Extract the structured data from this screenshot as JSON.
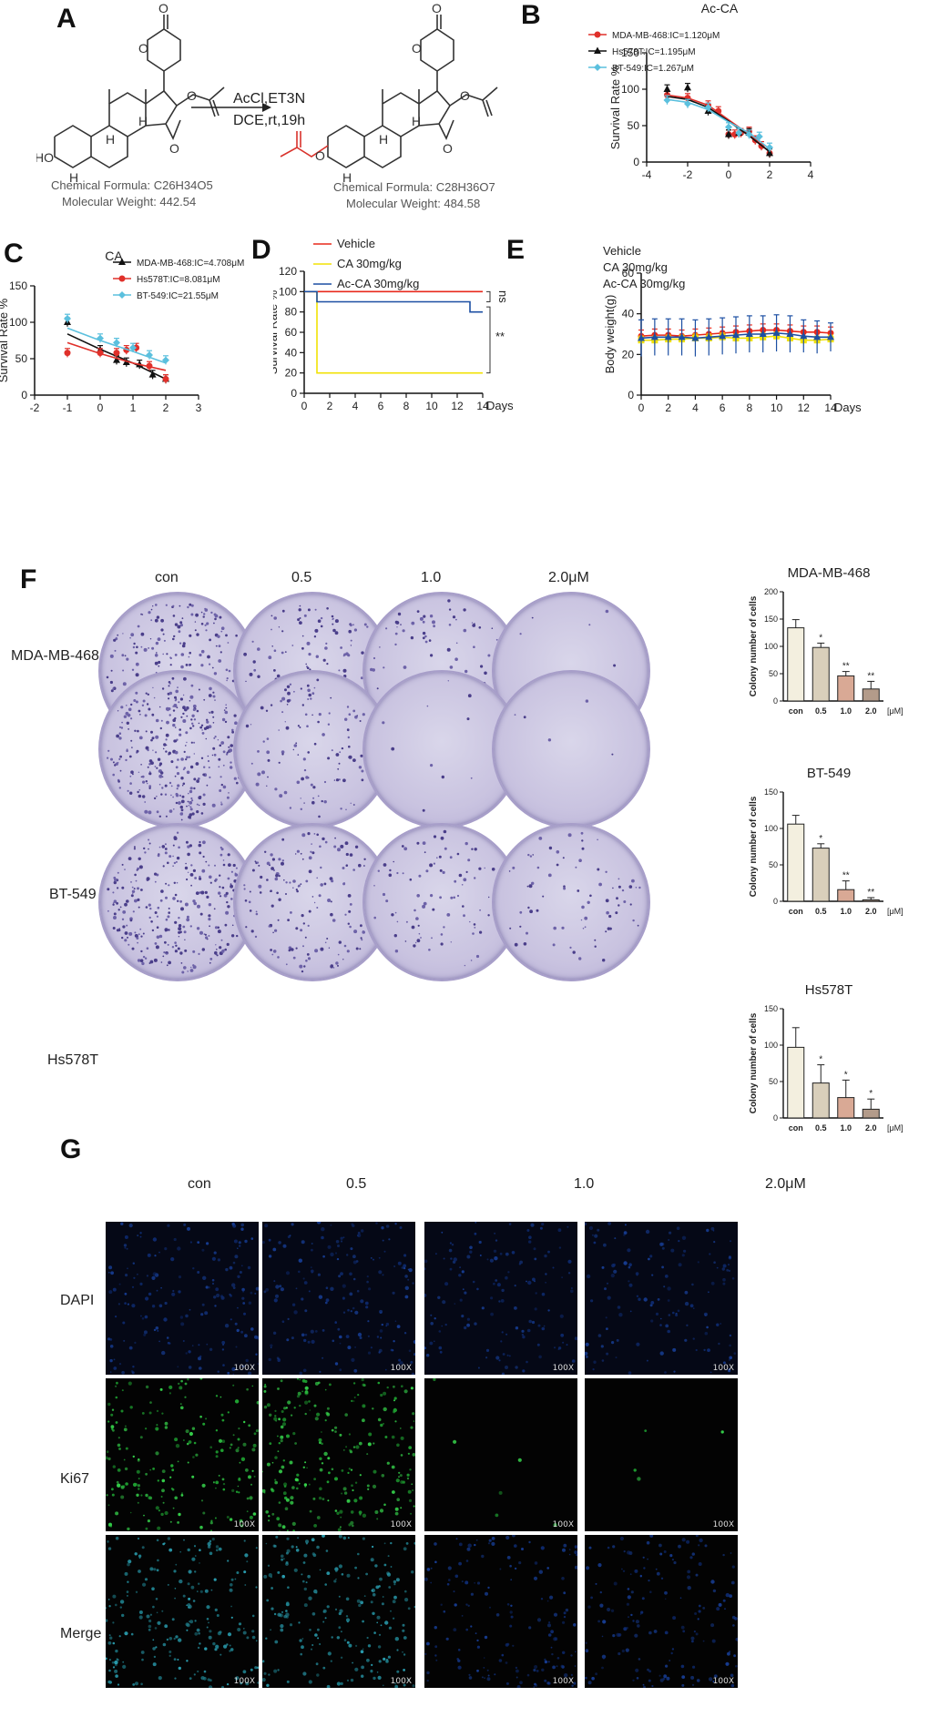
{
  "panels": {
    "A": "A",
    "B": "B",
    "C": "C",
    "D": "D",
    "E": "E",
    "F": "F",
    "G": "G"
  },
  "panelA": {
    "reagents": "AcCl,ET3N",
    "conditions": "DCE,rt,19h",
    "reactant": {
      "formula": "Chemical Formula: C26H34O5",
      "weight": "Molecular Weight: 442.54"
    },
    "product": {
      "formula": "Chemical Formula: C28H36O7",
      "weight": "Molecular Weight: 484.58"
    },
    "atom_labels": {
      "o": "O",
      "h": "H",
      "ho": "HO"
    }
  },
  "chart_data": [
    {
      "id": "B",
      "type": "line",
      "title": "Ac-CA",
      "xlabel": "",
      "ylabel": "Survival Rate %",
      "xlim": [
        -4,
        4
      ],
      "ylim": [
        0,
        150
      ],
      "xticks": [
        "-4",
        "-2",
        "0",
        "2",
        "4"
      ],
      "yticks": [
        "0",
        "50",
        "100",
        "150"
      ],
      "series": [
        {
          "name": "MDA-MB-468:IC=1.120μM",
          "color": "#e0302a",
          "marker": "circle",
          "x": [
            -3,
            -2,
            -1,
            -0.5,
            0,
            0.3,
            0.6,
            1,
            1.3,
            1.6,
            2
          ],
          "y": [
            92,
            88,
            78,
            70,
            38,
            38,
            40,
            42,
            30,
            22,
            12
          ],
          "curve": [
            [
              -3,
              92
            ],
            [
              -2,
              88
            ],
            [
              -1,
              78
            ],
            [
              0,
              58
            ],
            [
              1,
              38
            ],
            [
              2,
              14
            ]
          ]
        },
        {
          "name": "Hs578T:IC=1.195μM",
          "color": "#111111",
          "marker": "triangle",
          "x": [
            -3,
            -2,
            -1,
            0,
            0.5,
            1,
            2
          ],
          "y": [
            100,
            102,
            70,
            38,
            40,
            40,
            12
          ],
          "curve": [
            [
              -3,
              90
            ],
            [
              -2,
              86
            ],
            [
              -1,
              75
            ],
            [
              0,
              56
            ],
            [
              1,
              36
            ],
            [
              2,
              14
            ]
          ]
        },
        {
          "name": "BT-549:IC=1.267μM",
          "color": "#5bc0de",
          "marker": "diamond",
          "x": [
            -3,
            -2,
            -1,
            0,
            0.5,
            1,
            1.5,
            2
          ],
          "y": [
            85,
            80,
            75,
            48,
            40,
            38,
            35,
            20
          ],
          "curve": [
            [
              -3,
              86
            ],
            [
              -2,
              82
            ],
            [
              -1,
              72
            ],
            [
              0,
              55
            ],
            [
              1,
              40
            ],
            [
              2,
              18
            ]
          ]
        }
      ]
    },
    {
      "id": "C",
      "type": "line",
      "title": "CA",
      "xlabel": "",
      "ylabel": "Survival Rate %",
      "xlim": [
        -2,
        3
      ],
      "ylim": [
        0,
        150
      ],
      "xticks": [
        "-2",
        "-1",
        "0",
        "1",
        "2",
        "3"
      ],
      "yticks": [
        "0",
        "50",
        "100",
        "150"
      ],
      "series": [
        {
          "name": "MDA-MB-468:IC=4.708μM",
          "color": "#111111",
          "marker": "triangle",
          "x": [
            -1,
            0,
            0.5,
            0.8,
            1.2,
            1.6,
            2
          ],
          "y": [
            100,
            62,
            48,
            45,
            42,
            28,
            22
          ],
          "curve": [
            [
              -1,
              84
            ],
            [
              0,
              63
            ],
            [
              1,
              44
            ],
            [
              2,
              22
            ]
          ]
        },
        {
          "name": "Hs578T:IC=8.081μM",
          "color": "#e0302a",
          "marker": "circle",
          "x": [
            -1,
            0,
            0.5,
            0.8,
            1.1,
            1.5,
            2
          ],
          "y": [
            58,
            58,
            58,
            62,
            65,
            40,
            22
          ],
          "curve": [
            [
              -1,
              72
            ],
            [
              0,
              57
            ],
            [
              1,
              44
            ],
            [
              2,
              34
            ]
          ]
        },
        {
          "name": "BT-549:IC=21.55μM",
          "color": "#5bc0de",
          "marker": "diamond",
          "x": [
            -1,
            0,
            0.5,
            1,
            1.5,
            2
          ],
          "y": [
            105,
            78,
            72,
            65,
            55,
            48
          ],
          "curve": [
            [
              -1,
              92
            ],
            [
              0,
              75
            ],
            [
              1,
              60
            ],
            [
              2,
              44
            ]
          ]
        }
      ]
    },
    {
      "id": "D",
      "type": "line",
      "title": "",
      "xlabel": "Days",
      "ylabel": "Survival Rate %",
      "xlim": [
        0,
        14
      ],
      "ylim": [
        0,
        120
      ],
      "xticks": [
        "0",
        "2",
        "4",
        "6",
        "8",
        "10",
        "12",
        "14"
      ],
      "yticks": [
        "0",
        "20",
        "40",
        "60",
        "80",
        "100",
        "120"
      ],
      "series": [
        {
          "name": "Vehicle",
          "color": "#e8291c",
          "steps": [
            [
              0,
              100
            ],
            [
              14,
              100
            ]
          ]
        },
        {
          "name": "CA 30mg/kg",
          "color": "#f2e205",
          "steps": [
            [
              0,
              100
            ],
            [
              1,
              100
            ],
            [
              1,
              20
            ],
            [
              14,
              20
            ]
          ]
        },
        {
          "name": "Ac-CA 30mg/kg",
          "color": "#1c4fa3",
          "steps": [
            [
              0,
              100
            ],
            [
              1,
              100
            ],
            [
              1,
              90
            ],
            [
              13,
              90
            ],
            [
              13,
              80
            ],
            [
              14,
              80
            ]
          ]
        }
      ],
      "annotations": [
        "ns",
        "**"
      ]
    },
    {
      "id": "E",
      "type": "line",
      "title": "",
      "xlabel": "Days",
      "ylabel": "Body weight(g)",
      "xlim": [
        0,
        14
      ],
      "ylim": [
        0,
        60
      ],
      "xticks": [
        "0",
        "2",
        "4",
        "6",
        "8",
        "10",
        "12",
        "14"
      ],
      "yticks": [
        "0",
        "20",
        "40",
        "60"
      ],
      "series": [
        {
          "name": "Vehicle",
          "color": "#e8291c",
          "marker": "circle",
          "x": [
            0,
            1,
            2,
            3,
            4,
            5,
            6,
            7,
            8,
            9,
            10,
            11,
            12,
            13,
            14
          ],
          "y": [
            29,
            29.5,
            29.5,
            29,
            29.5,
            30,
            30.5,
            31,
            31.5,
            32,
            32,
            31.5,
            31,
            31,
            30.5
          ],
          "err": [
            3,
            3,
            3,
            3,
            3,
            3,
            3,
            3,
            3,
            3,
            3,
            3,
            3,
            3,
            3
          ]
        },
        {
          "name": "CA 30mg/kg",
          "color": "#f2e205",
          "marker": "square",
          "x": [
            0,
            1,
            2,
            3,
            4,
            5,
            6,
            7,
            8,
            9,
            10,
            11,
            12,
            13,
            14
          ],
          "y": [
            27,
            27,
            27.5,
            27.5,
            28,
            28,
            28.5,
            28,
            28,
            28.5,
            29,
            28,
            27,
            27,
            27.5
          ],
          "err": [
            2,
            2,
            2,
            2,
            2,
            2,
            2,
            2,
            2,
            2,
            2,
            2,
            2,
            2,
            2
          ]
        },
        {
          "name": "Ac-CA 30mg/kg",
          "color": "#1c4fa3",
          "marker": "triangle",
          "x": [
            0,
            1,
            2,
            3,
            4,
            5,
            6,
            7,
            8,
            9,
            10,
            11,
            12,
            13,
            14
          ],
          "y": [
            28,
            28.5,
            28.5,
            28.5,
            28,
            28.5,
            29,
            29.5,
            30,
            30,
            30.5,
            30,
            29,
            28.5,
            28.5
          ],
          "err": [
            9,
            9,
            9,
            9,
            9,
            9,
            9,
            9,
            9,
            9,
            9,
            9,
            8,
            8,
            7
          ]
        }
      ]
    },
    {
      "id": "F1",
      "type": "bar",
      "title": "MDA-MB-468",
      "ylabel": "Colony number of cells",
      "unit": "[μM]",
      "categories": [
        "con",
        "0.5",
        "1.0",
        "2.0"
      ],
      "values": [
        134,
        98,
        46,
        22
      ],
      "err": [
        15,
        8,
        8,
        14
      ],
      "sig": [
        "",
        "*",
        "**",
        "**"
      ],
      "ylim": [
        0,
        200
      ],
      "yticks": [
        "0",
        "50",
        "100",
        "150",
        "200"
      ],
      "colors": [
        "#f3efdf",
        "#d9cfbb",
        "#d9a995",
        "#b39b8a"
      ]
    },
    {
      "id": "F2",
      "type": "bar",
      "title": "BT-549",
      "ylabel": "Colony number of cells",
      "unit": "[μM]",
      "categories": [
        "con",
        "0.5",
        "1.0",
        "2.0"
      ],
      "values": [
        106,
        73,
        16,
        2
      ],
      "err": [
        12,
        6,
        12,
        3
      ],
      "sig": [
        "",
        "*",
        "**",
        "**"
      ],
      "ylim": [
        0,
        150
      ],
      "yticks": [
        "0",
        "50",
        "100",
        "150"
      ],
      "colors": [
        "#f3efdf",
        "#d9cfbb",
        "#d9a995",
        "#b39b8a"
      ]
    },
    {
      "id": "F3",
      "type": "bar",
      "title": "Hs578T",
      "ylabel": "Colony number of cells",
      "unit": "[μM]",
      "categories": [
        "con",
        "0.5",
        "1.0",
        "2.0"
      ],
      "values": [
        97,
        48,
        28,
        12
      ],
      "err": [
        27,
        25,
        24,
        14
      ],
      "sig": [
        "",
        "*",
        "*",
        "*"
      ],
      "ylim": [
        0,
        150
      ],
      "yticks": [
        "0",
        "50",
        "100",
        "150"
      ],
      "colors": [
        "#f3efdf",
        "#d9cfbb",
        "#d9a995",
        "#b39b8a"
      ]
    }
  ],
  "panelF": {
    "doses": [
      "con",
      "0.5",
      "1.0",
      "2.0μM"
    ],
    "rows": [
      "MDA-MB-468",
      "BT-549",
      "Hs578T"
    ]
  },
  "panelG": {
    "doses": [
      "con",
      "0.5",
      "1.0",
      "2.0μM"
    ],
    "rows": [
      "DAPI",
      "Ki67",
      "Merge"
    ],
    "magnification": "100X"
  }
}
